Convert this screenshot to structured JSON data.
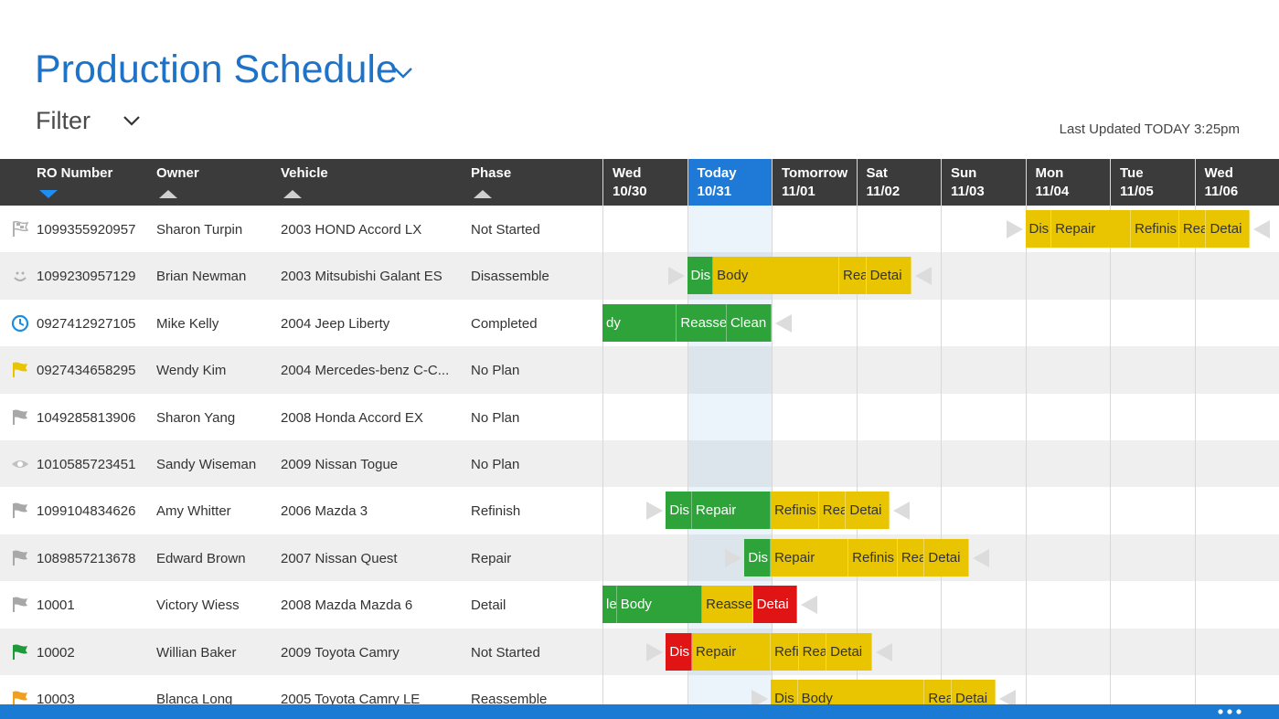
{
  "header": {
    "title": "Production Schedule",
    "filter": "Filter",
    "last_updated": "Last Updated TODAY 3:25pm"
  },
  "columns": [
    {
      "label": "RO Number",
      "sort": "down"
    },
    {
      "label": "Owner",
      "sort": "up"
    },
    {
      "label": "Vehicle",
      "sort": "up"
    },
    {
      "label": "Phase",
      "sort": "up"
    }
  ],
  "days": [
    {
      "name": "Wed",
      "date": "10/30",
      "today": false
    },
    {
      "name": "Today",
      "date": "10/31",
      "today": true
    },
    {
      "name": "Tomorrow",
      "date": "11/01",
      "today": false
    },
    {
      "name": "Sat",
      "date": "11/02",
      "today": false
    },
    {
      "name": "Sun",
      "date": "11/03",
      "today": false
    },
    {
      "name": "Mon",
      "date": "11/04",
      "today": false
    },
    {
      "name": "Tue",
      "date": "11/05",
      "today": false
    },
    {
      "name": "Wed",
      "date": "11/06",
      "today": false
    }
  ],
  "rows": [
    {
      "icon": "checkered",
      "icon_color": "#b0b0b0",
      "ro": "1099355920957",
      "owner": "Sharon Turpin",
      "vehicle": "2003 HOND Accord LX",
      "phase": "Not Started",
      "segments": [
        {
          "label": "Dis",
          "color": "#e8c500",
          "start": 5.0,
          "end": 5.31
        },
        {
          "label": "Repair",
          "color": "#e8c500",
          "start": 5.31,
          "end": 6.25
        },
        {
          "label": "Refinis",
          "color": "#e8c500",
          "start": 6.25,
          "end": 6.82
        },
        {
          "label": "Rea",
          "color": "#e8c500",
          "start": 6.82,
          "end": 7.14
        },
        {
          "label": "Detai",
          "color": "#e8c500",
          "start": 7.14,
          "end": 7.65
        }
      ]
    },
    {
      "icon": "smiley",
      "icon_color": "#b0b0b0",
      "ro": "1099230957129",
      "owner": "Brian Newman",
      "vehicle": "2003 Mitsubishi Galant ES",
      "phase": "Disassemble",
      "segments": [
        {
          "label": "Dis",
          "color": "#2ea33a",
          "start": 1.0,
          "end": 1.31
        },
        {
          "label": "Body",
          "color": "#e8c500",
          "start": 1.31,
          "end": 2.8
        },
        {
          "label": "Rea",
          "color": "#e8c500",
          "start": 2.8,
          "end": 3.12
        },
        {
          "label": "Detai",
          "color": "#e8c500",
          "start": 3.12,
          "end": 3.65
        }
      ]
    },
    {
      "icon": "clock",
      "icon_color": "#1a8ee0",
      "ro": "0927412927105",
      "owner": "Mike Kelly",
      "vehicle": "2004 Jeep Liberty",
      "phase": "Completed",
      "segments": [
        {
          "label": "dy",
          "color": "#2ea33a",
          "start": 0,
          "end": 0.88
        },
        {
          "label": "Reasse",
          "color": "#2ea33a",
          "start": 0.88,
          "end": 1.47
        },
        {
          "label": "Clean",
          "color": "#2ea33a",
          "start": 1.47,
          "end": 2.0
        }
      ]
    },
    {
      "icon": "flag",
      "icon_color": "#e8c500",
      "ro": "0927434658295",
      "owner": "Wendy Kim",
      "vehicle": "2004 Mercedes-benz C-C...",
      "phase": "No Plan",
      "segments": []
    },
    {
      "icon": "flag",
      "icon_color": "#a8a8a8",
      "ro": "1049285813906",
      "owner": "Sharon Yang",
      "vehicle": "2008 Honda Accord EX",
      "phase": "No Plan",
      "segments": []
    },
    {
      "icon": "eye",
      "icon_color": "#c0c0c0",
      "ro": "1010585723451",
      "owner": "Sandy Wiseman",
      "vehicle": "2009 Nissan Togue",
      "phase": "No Plan",
      "segments": []
    },
    {
      "icon": "flag",
      "icon_color": "#a8a8a8",
      "ro": "1099104834626",
      "owner": "Amy Whitter",
      "vehicle": "2006 Mazda 3",
      "phase": "Refinish",
      "segments": [
        {
          "label": "Dis",
          "color": "#2ea33a",
          "start": 0.75,
          "end": 1.06
        },
        {
          "label": "Repair",
          "color": "#2ea33a",
          "start": 1.06,
          "end": 1.99
        },
        {
          "label": "Refinis",
          "color": "#e8c500",
          "start": 1.99,
          "end": 2.56
        },
        {
          "label": "Rea",
          "color": "#e8c500",
          "start": 2.56,
          "end": 2.88
        },
        {
          "label": "Detai",
          "color": "#e8c500",
          "start": 2.88,
          "end": 3.39
        }
      ]
    },
    {
      "icon": "flag",
      "icon_color": "#a8a8a8",
      "ro": "1089857213678",
      "owner": "Edward Brown",
      "vehicle": "2007 Nissan Quest",
      "phase": "Repair",
      "segments": [
        {
          "label": "Dis",
          "color": "#2ea33a",
          "start": 1.68,
          "end": 1.99
        },
        {
          "label": "Repair",
          "color": "#e8c500",
          "start": 1.99,
          "end": 2.91
        },
        {
          "label": "Refinis",
          "color": "#e8c500",
          "start": 2.91,
          "end": 3.49
        },
        {
          "label": "Rea",
          "color": "#e8c500",
          "start": 3.49,
          "end": 3.81
        },
        {
          "label": "Detai",
          "color": "#e8c500",
          "start": 3.81,
          "end": 4.34
        }
      ]
    },
    {
      "icon": "flag",
      "icon_color": "#a8a8a8",
      "ro": "10001",
      "owner": "Victory Wiess",
      "vehicle": "2008 Mazda Mazda 6",
      "phase": "Detail",
      "segments": [
        {
          "label": "le",
          "color": "#2ea33a",
          "start": 0,
          "end": 0.17
        },
        {
          "label": "Body",
          "color": "#2ea33a",
          "start": 0.17,
          "end": 1.18
        },
        {
          "label": "Reasse",
          "color": "#e8c500",
          "start": 1.18,
          "end": 1.78
        },
        {
          "label": "Detai",
          "color": "#e01414",
          "start": 1.78,
          "end": 2.3
        }
      ]
    },
    {
      "icon": "flag",
      "icon_color": "#1f9a3a",
      "ro": "10002",
      "owner": "Willian Baker",
      "vehicle": "2009 Toyota Camry",
      "phase": "Not Started",
      "segments": [
        {
          "label": "Dis",
          "color": "#e01414",
          "start": 0.75,
          "end": 1.06
        },
        {
          "label": "Repair",
          "color": "#e8c500",
          "start": 1.06,
          "end": 1.99
        },
        {
          "label": "Refi",
          "color": "#e8c500",
          "start": 1.99,
          "end": 2.32
        },
        {
          "label": "Rea",
          "color": "#e8c500",
          "start": 2.32,
          "end": 2.65
        },
        {
          "label": "Detai",
          "color": "#e8c500",
          "start": 2.65,
          "end": 3.19
        }
      ]
    },
    {
      "icon": "flag",
      "icon_color": "#f0a020",
      "ro": "10003",
      "owner": "Blanca Long",
      "vehicle": "2005 Toyota Camry LE",
      "phase": "Reassemble",
      "segments": [
        {
          "label": "Dis",
          "color": "#e8c500",
          "start": 1.99,
          "end": 2.31
        },
        {
          "label": "Body",
          "color": "#e8c500",
          "start": 2.31,
          "end": 3.81
        },
        {
          "label": "Rea",
          "color": "#e8c500",
          "start": 3.81,
          "end": 4.13
        },
        {
          "label": "Detai",
          "color": "#e8c500",
          "start": 4.13,
          "end": 4.65
        }
      ]
    }
  ]
}
